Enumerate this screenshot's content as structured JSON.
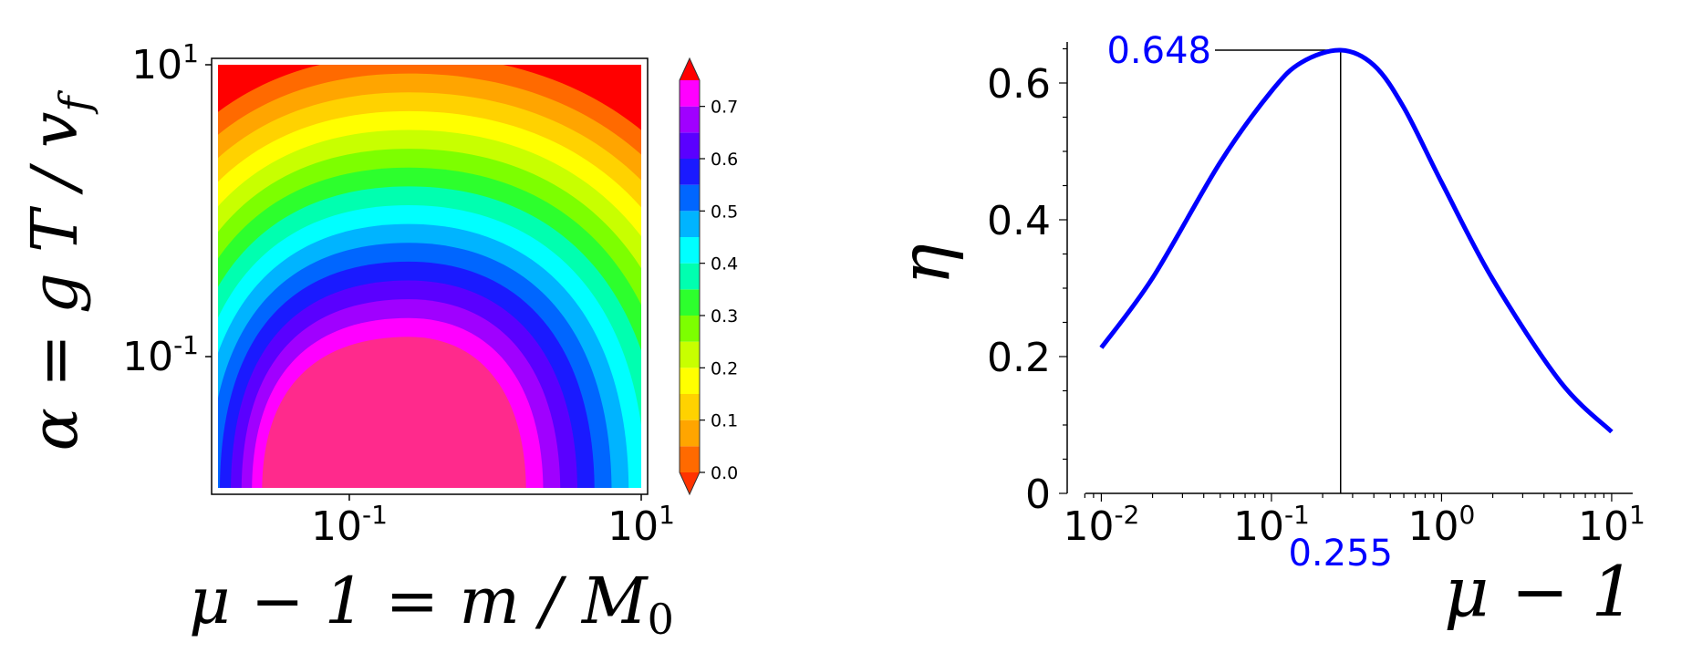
{
  "chart_data": [
    {
      "type": "heatmap",
      "xlabel": "μ − 1 = m / M₀",
      "ylabel": "α = g T / v_f",
      "x_scale": "log",
      "y_scale": "log",
      "xlim": [
        0.0126,
        10
      ],
      "ylim": [
        0.0126,
        10
      ],
      "x_ticks": [
        {
          "value": 0.1,
          "base": "10",
          "exp": "-1"
        },
        {
          "value": 10,
          "base": "10",
          "exp": "1"
        }
      ],
      "y_ticks": [
        {
          "value": 0.1,
          "base": "10",
          "exp": "-1"
        },
        {
          "value": 10,
          "base": "10",
          "exp": "1"
        }
      ],
      "colorbar": {
        "levels": [
          0.0,
          0.05,
          0.1,
          0.15,
          0.2,
          0.25,
          0.3,
          0.35,
          0.4,
          0.45,
          0.5,
          0.55,
          0.6,
          0.65,
          0.7,
          0.75
        ],
        "colors": [
          "#ff3300",
          "#ff6a00",
          "#ffa500",
          "#ffd200",
          "#ffff00",
          "#c8ff00",
          "#7dff00",
          "#2dff2d",
          "#00ffb0",
          "#00ffff",
          "#00b4ff",
          "#0066ff",
          "#1a1aff",
          "#5a00ff",
          "#a000ff",
          "#ff00ff",
          "#ff2a8c",
          "#ff0000"
        ],
        "tick_labels": [
          "0.0",
          "0.1",
          "0.2",
          "0.3",
          "0.4",
          "0.5",
          "0.6",
          "0.7"
        ],
        "extend": "both"
      },
      "peak": {
        "x": 0.255,
        "y_max_region": 0.04,
        "value": 0.75
      },
      "saturated_region": "upper-right"
    },
    {
      "type": "line",
      "xlabel": "μ − 1",
      "ylabel": "η",
      "x_scale": "log",
      "xlim": [
        0.0063,
        16
      ],
      "ylim": [
        0,
        0.66
      ],
      "x_ticks": [
        {
          "value": 0.01,
          "base": "10",
          "exp": "-2"
        },
        {
          "value": 0.1,
          "base": "10",
          "exp": "-1"
        },
        {
          "value": 1,
          "base": "10",
          "exp": "0"
        },
        {
          "value": 10,
          "base": "10",
          "exp": "1"
        }
      ],
      "y_ticks": [
        {
          "value": 0,
          "label": "0"
        },
        {
          "value": 0.2,
          "label": "0.2"
        },
        {
          "value": 0.4,
          "label": "0.4"
        },
        {
          "value": 0.6,
          "label": "0.6"
        }
      ],
      "series": [
        {
          "color": "#0000ff",
          "points": [
            [
              0.01,
              0.213
            ],
            [
              0.02,
              0.315
            ],
            [
              0.05,
              0.484
            ],
            [
              0.1,
              0.588
            ],
            [
              0.15,
              0.63
            ],
            [
              0.255,
              0.648
            ],
            [
              0.4,
              0.626
            ],
            [
              0.6,
              0.564
            ],
            [
              1.0,
              0.455
            ],
            [
              2.0,
              0.313
            ],
            [
              5.0,
              0.163
            ],
            [
              10.0,
              0.09
            ]
          ]
        }
      ],
      "annotations": {
        "max_value_label": "0.648",
        "argmax_label": "0.255",
        "argmax_x": 0.255,
        "max_y": 0.648
      }
    }
  ]
}
